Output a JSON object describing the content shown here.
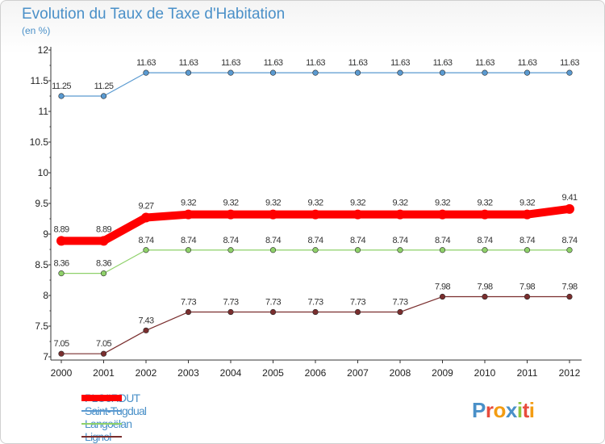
{
  "header": {
    "title": "Evolution du Taux de Taxe d'Habitation",
    "subtitle": "(en %)"
  },
  "logo": {
    "text": "Proxiti",
    "colors": [
      "#4a90c8",
      "#e84c3d",
      "#f39c12",
      "#4a90c8",
      "#8dc63f",
      "#e84c3d",
      "#f39c12"
    ]
  },
  "chart_data": {
    "type": "line",
    "title": "Evolution du Taux de Taxe d'Habitation",
    "ylabel": "(en %)",
    "xlabel": "",
    "ylim": [
      7,
      12
    ],
    "yticks": [
      7,
      7.5,
      8,
      8.5,
      9,
      9.5,
      10,
      10.5,
      11,
      11.5,
      12
    ],
    "x": [
      2000,
      2001,
      2002,
      2003,
      2004,
      2005,
      2006,
      2007,
      2008,
      2009,
      2010,
      2011,
      2012
    ],
    "grid": false,
    "legend_position": "bottom-left",
    "series": [
      {
        "name": "PLOëRDUT",
        "color": "#ff0000",
        "values": [
          8.89,
          8.89,
          9.27,
          9.32,
          9.32,
          9.32,
          9.32,
          9.32,
          9.32,
          9.32,
          9.32,
          9.32,
          9.41
        ]
      },
      {
        "name": "Saint-Tugdual",
        "color": "#5a9ad1",
        "values": [
          11.25,
          11.25,
          11.63,
          11.63,
          11.63,
          11.63,
          11.63,
          11.63,
          11.63,
          11.63,
          11.63,
          11.63,
          11.63
        ]
      },
      {
        "name": "Langoëlan",
        "color": "#8fd16a",
        "values": [
          8.36,
          8.36,
          8.74,
          8.74,
          8.74,
          8.74,
          8.74,
          8.74,
          8.74,
          8.74,
          8.74,
          8.74,
          8.74
        ]
      },
      {
        "name": "Lignol",
        "color": "#7a2e2e",
        "values": [
          7.05,
          7.05,
          7.43,
          7.73,
          7.73,
          7.73,
          7.73,
          7.73,
          7.73,
          7.98,
          7.98,
          7.98,
          7.98
        ]
      }
    ]
  }
}
